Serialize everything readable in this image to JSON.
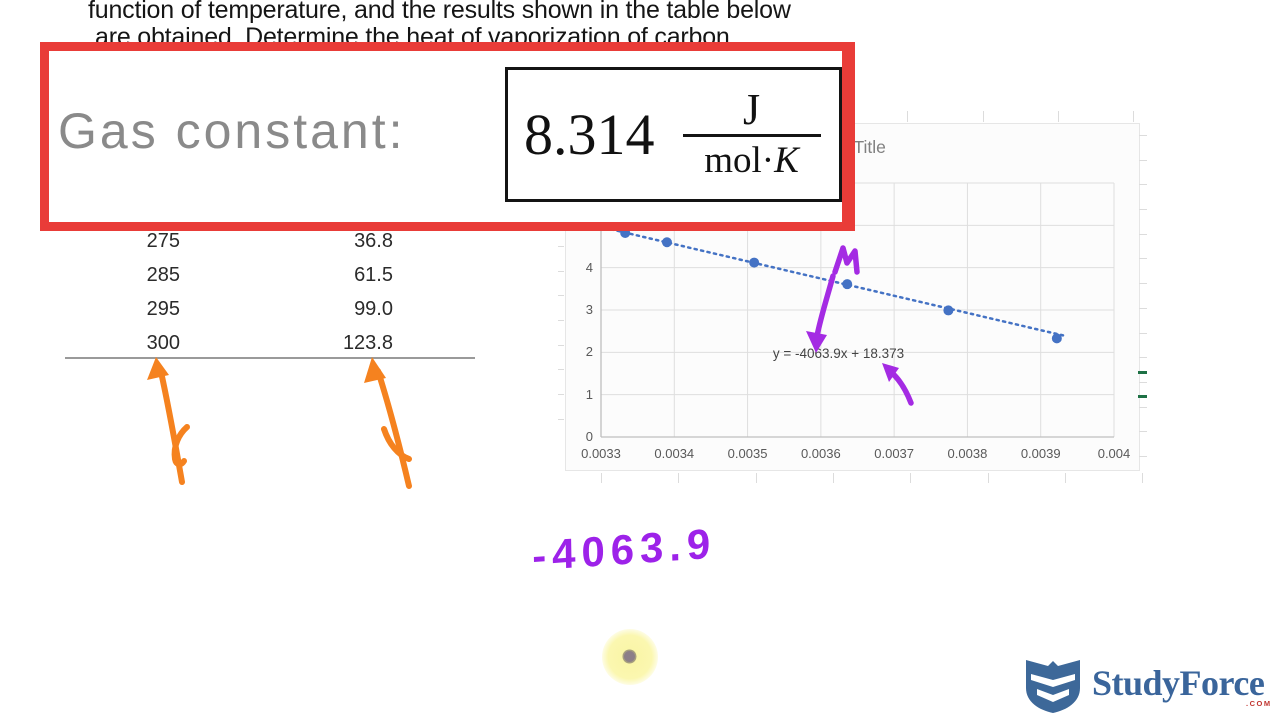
{
  "problem_text": {
    "line1": "function of temperature, and the results shown in the table below",
    "line2": "are obtained. Determine the heat of vaporization of carbon"
  },
  "callout": {
    "label": "Gas constant:",
    "value": "8.314",
    "unit_numerator": "J",
    "unit_denominator_roman": "mol·",
    "unit_denominator_italic": "K"
  },
  "data_table": {
    "rows": [
      [
        "275",
        "36.8"
      ],
      [
        "285",
        "61.5"
      ],
      [
        "295",
        "99.0"
      ],
      [
        "300",
        "123.8"
      ]
    ]
  },
  "chart_data": {
    "type": "scatter",
    "title": "Chart Title",
    "x": [
      0.003333,
      0.00339,
      0.003509,
      0.003636,
      0.003774,
      0.003922
    ],
    "y": [
      4.82,
      4.6,
      4.12,
      3.61,
      2.99,
      2.33
    ],
    "trendline": {
      "slope": -4063.9,
      "intercept": 18.373,
      "equation_label": "y = -4063.9x + 18.373",
      "style": "dotted",
      "x_range": [
        0.003305,
        0.003935
      ]
    },
    "x_ticks": [
      "0.0033",
      "0.0034",
      "0.0035",
      "0.0036",
      "0.0037",
      "0.0038",
      "0.0039",
      "0.004"
    ],
    "x_tick_values": [
      0.0033,
      0.0034,
      0.0035,
      0.0036,
      0.0037,
      0.0038,
      0.0039,
      0.004
    ],
    "y_ticks": [
      "0",
      "1",
      "2",
      "3",
      "4"
    ],
    "y_tick_values": [
      0,
      1,
      2,
      3,
      4
    ],
    "xlim": [
      0.0033,
      0.004
    ],
    "ylim": [
      0,
      6
    ],
    "grid": true,
    "legend": "none",
    "point_color": "#4472C4"
  },
  "annotations": {
    "handwritten_value": "-4063.9",
    "arrow_color_orange": "#F5821F",
    "arrow_color_purple": "#A42BE3"
  },
  "watermark": {
    "brand": "StudyForce",
    "tld": ".COM",
    "brand_color": "#3A659B"
  },
  "colors": {
    "callout_border": "#E93C38",
    "label_gray": "#8A8A8A",
    "excel_green": "#1E7145"
  }
}
